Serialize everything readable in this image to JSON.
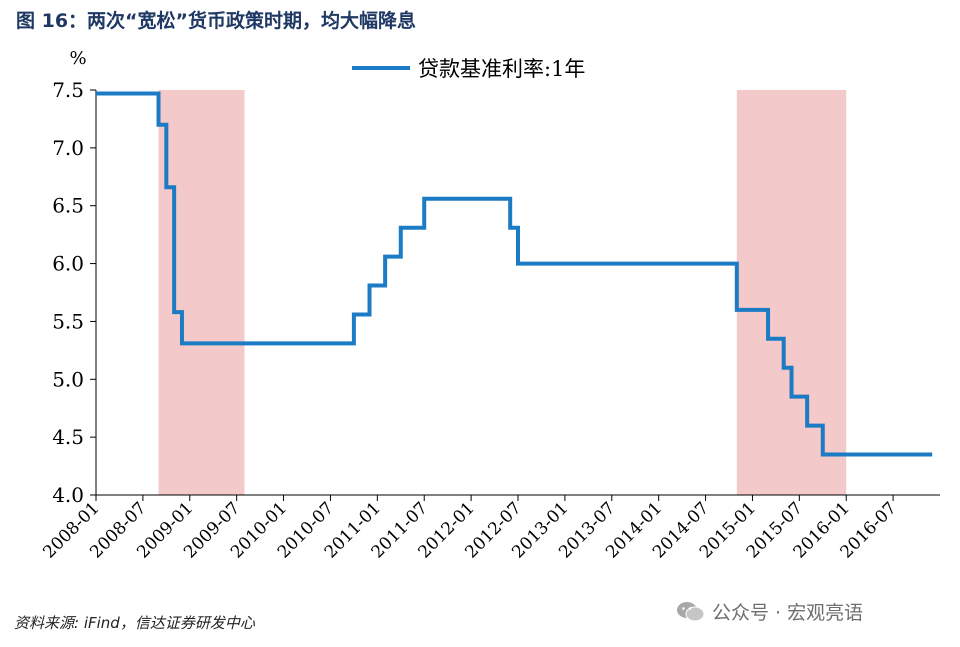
{
  "figure": {
    "title": "图 16：两次“宽松”货币政策时期，均大幅降息",
    "source": "资料来源: iFind，信达证券研发中心",
    "watermark": "公众号 · 宏观亮语"
  },
  "colors": {
    "line": "#1b7bc4",
    "shade": "#f4c9c9",
    "title": "#1f3864",
    "axis": "#000000"
  },
  "chart_data": {
    "type": "line",
    "step": true,
    "unit_label": "%",
    "ylim": [
      4.0,
      7.5
    ],
    "yticks": [
      4.0,
      4.5,
      5.0,
      5.5,
      6.0,
      6.5,
      7.0,
      7.5
    ],
    "ytick_labels": [
      "4.0",
      "4.5",
      "5.0",
      "5.5",
      "6.0",
      "6.5",
      "7.0",
      "7.5"
    ],
    "xlim": [
      "2008-01",
      "2016-12"
    ],
    "xtick_labels": [
      "2008-01",
      "2008-07",
      "2009-01",
      "2009-07",
      "2010-01",
      "2010-07",
      "2011-01",
      "2011-07",
      "2012-01",
      "2012-07",
      "2013-01",
      "2013-07",
      "2014-01",
      "2014-07",
      "2015-01",
      "2015-07",
      "2016-01",
      "2016-07"
    ],
    "legend": "top-center",
    "grid": false,
    "shaded_periods": [
      {
        "start": "2008-09",
        "end": "2009-07"
      },
      {
        "start": "2014-11",
        "end": "2015-12"
      }
    ],
    "series": [
      {
        "name": "贷款基准利率:1年",
        "points": [
          [
            "2008-01",
            7.47
          ],
          [
            "2008-09",
            7.2
          ],
          [
            "2008-10",
            6.66
          ],
          [
            "2008-11",
            5.58
          ],
          [
            "2008-12",
            5.31
          ],
          [
            "2010-10",
            5.56
          ],
          [
            "2010-12",
            5.81
          ],
          [
            "2011-02",
            6.06
          ],
          [
            "2011-04",
            6.31
          ],
          [
            "2011-07",
            6.56
          ],
          [
            "2012-06",
            6.31
          ],
          [
            "2012-07",
            6.0
          ],
          [
            "2014-11",
            5.6
          ],
          [
            "2015-03",
            5.35
          ],
          [
            "2015-05",
            5.1
          ],
          [
            "2015-06",
            4.85
          ],
          [
            "2015-08",
            4.6
          ],
          [
            "2015-10",
            4.35
          ],
          [
            "2016-12",
            4.35
          ]
        ]
      }
    ]
  }
}
